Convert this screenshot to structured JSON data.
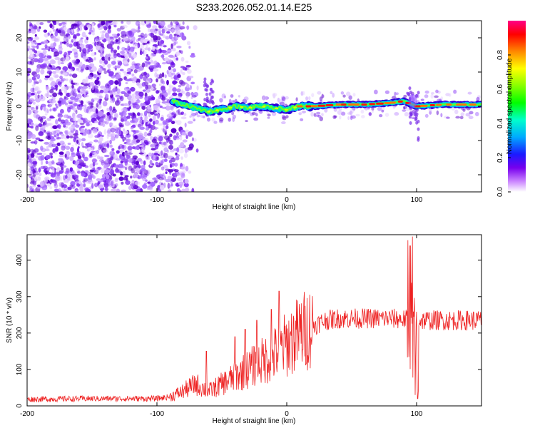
{
  "title": "S233.2026.052.01.14.E25",
  "colors": {
    "snr_line": "#ee2222",
    "axis": "#000000",
    "background": "#ffffff"
  },
  "chart_data": [
    {
      "type": "heatmap",
      "name": "spectrogram",
      "xlabel": "Height of straight line (km)",
      "ylabel": "Frequency (Hz)",
      "xlim": [
        -200,
        150
      ],
      "ylim": [
        -25,
        25
      ],
      "xticks": [
        -200,
        -100,
        0,
        100
      ],
      "yticks": [
        -20,
        -10,
        0,
        10,
        20
      ],
      "colorbar": {
        "label": "Normalized spectral amplitude",
        "range": [
          0,
          1
        ],
        "ticks": [
          "0.0",
          "0.2",
          "0.4",
          "0.6",
          "0.8"
        ]
      },
      "features": {
        "noise_region_x": [
          -200,
          -88
        ],
        "transition_x": [
          -88,
          -60
        ],
        "signal_track": [
          {
            "x": -88,
            "f": 1.5
          },
          {
            "x": -80,
            "f": 0.5
          },
          {
            "x": -70,
            "f": -0.5
          },
          {
            "x": -60,
            "f": -1.5
          },
          {
            "x": -50,
            "f": -1.0
          },
          {
            "x": -40,
            "f": 0.0
          },
          {
            "x": -30,
            "f": -0.5
          },
          {
            "x": -20,
            "f": 0.0
          },
          {
            "x": -10,
            "f": -0.5
          },
          {
            "x": 0,
            "f": -1.0
          },
          {
            "x": 10,
            "f": 0.0
          },
          {
            "x": 20,
            "f": 0.0
          },
          {
            "x": 40,
            "f": 0.5
          },
          {
            "x": 60,
            "f": 0.5
          },
          {
            "x": 80,
            "f": 1.0
          },
          {
            "x": 90,
            "f": 1.5
          },
          {
            "x": 100,
            "f": 0.0
          },
          {
            "x": 120,
            "f": 0.5
          },
          {
            "x": 150,
            "f": 0.5
          }
        ],
        "disturbance_x": [
          92,
          102
        ]
      }
    },
    {
      "type": "line",
      "name": "snr",
      "xlabel": "Height of straight line (km)",
      "ylabel": "SNR (10 * v/v)",
      "xlim": [
        -200,
        150
      ],
      "ylim": [
        0,
        470
      ],
      "xticks": [
        -200,
        -100,
        0,
        100
      ],
      "yticks": [
        0,
        100,
        200,
        300,
        400
      ],
      "series": [
        {
          "name": "SNR",
          "baseline": [
            {
              "x": -200,
              "y": 18
            },
            {
              "x": -150,
              "y": 20
            },
            {
              "x": -100,
              "y": 20
            },
            {
              "x": -90,
              "y": 25
            },
            {
              "x": -80,
              "y": 40
            },
            {
              "x": -70,
              "y": 60
            },
            {
              "x": -60,
              "y": 40
            },
            {
              "x": -50,
              "y": 60
            },
            {
              "x": -40,
              "y": 80
            },
            {
              "x": -30,
              "y": 100
            },
            {
              "x": -20,
              "y": 120
            },
            {
              "x": -10,
              "y": 140
            },
            {
              "x": 0,
              "y": 170
            },
            {
              "x": 10,
              "y": 200
            },
            {
              "x": 20,
              "y": 220
            },
            {
              "x": 30,
              "y": 235
            },
            {
              "x": 40,
              "y": 240
            },
            {
              "x": 60,
              "y": 240
            },
            {
              "x": 80,
              "y": 240
            },
            {
              "x": 100,
              "y": 235
            },
            {
              "x": 120,
              "y": 235
            },
            {
              "x": 150,
              "y": 235
            }
          ],
          "spikes": [
            {
              "x": -62,
              "y": 150
            },
            {
              "x": -40,
              "y": 190
            },
            {
              "x": -32,
              "y": 210
            },
            {
              "x": -23,
              "y": 235
            },
            {
              "x": -12,
              "y": 265
            },
            {
              "x": -6,
              "y": 315
            },
            {
              "x": 93,
              "y": 455
            },
            {
              "x": 95,
              "y": 440
            },
            {
              "x": 97,
              "y": 465
            },
            {
              "x": 99,
              "y": 30
            },
            {
              "x": 101,
              "y": 20
            }
          ]
        }
      ]
    }
  ]
}
